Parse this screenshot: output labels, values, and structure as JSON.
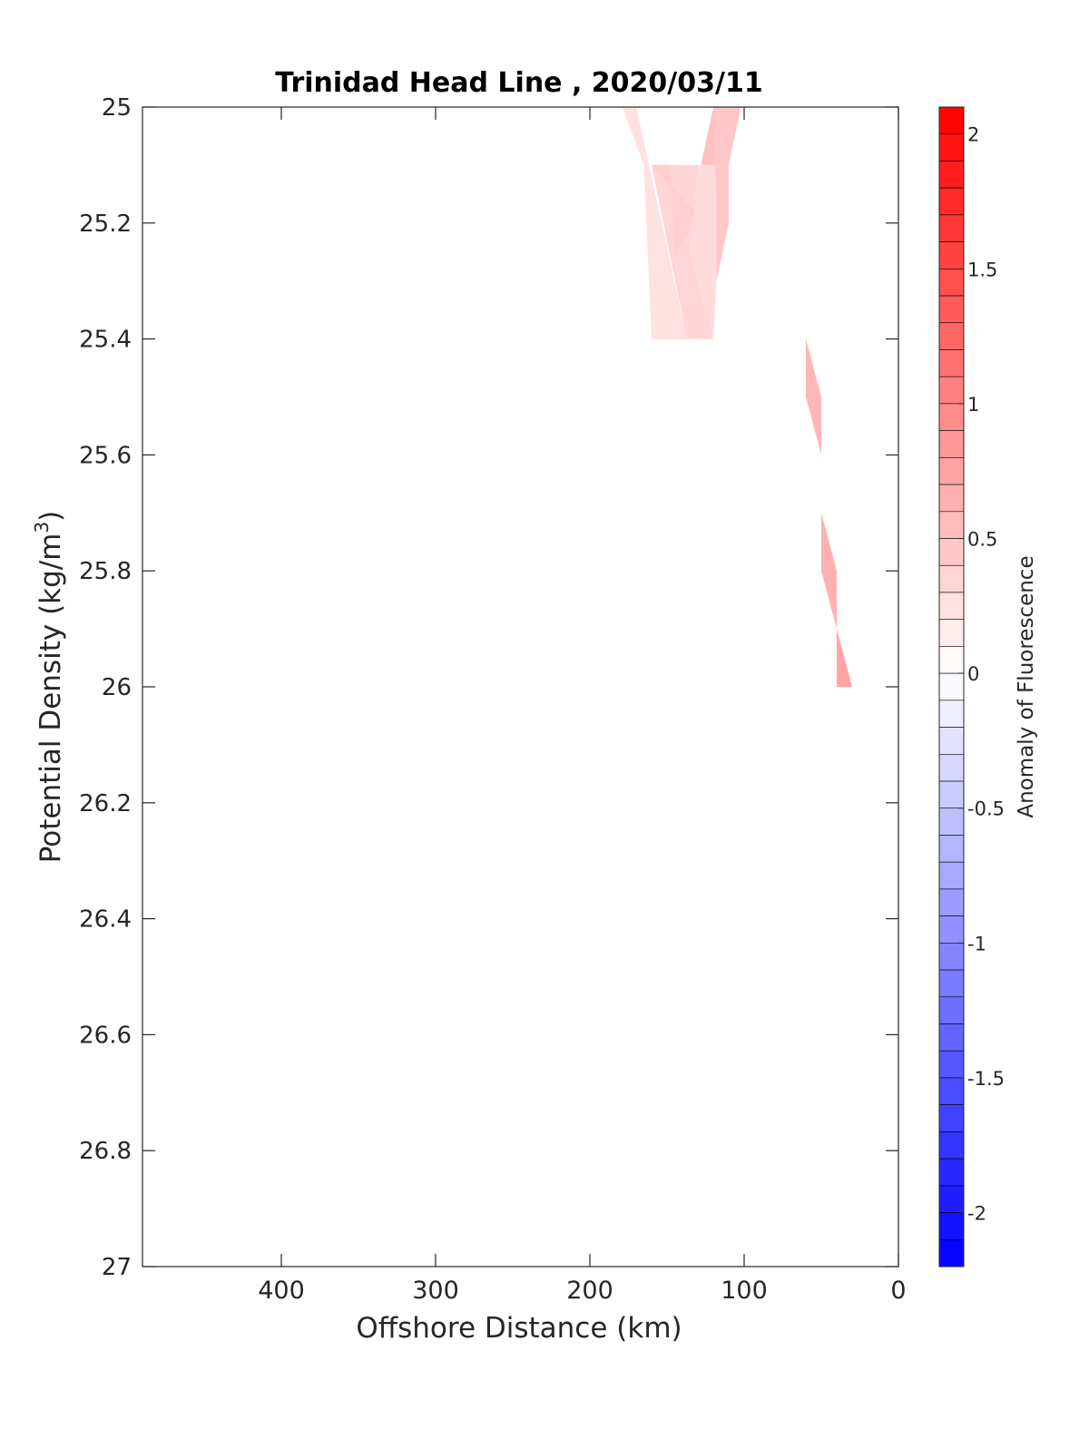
{
  "chart_data": {
    "type": "contour",
    "title": "Trinidad Head Line , 2020/03/11",
    "xlabel": "Offshore Distance (km)",
    "ylabel": "Potential Density (kg/m",
    "ylabel_superscript": "3",
    "ylabel_suffix": ")",
    "xlim": [
      490,
      0
    ],
    "ylim": [
      25,
      27
    ],
    "x_reversed": true,
    "y_reversed": true,
    "xticks": [
      400,
      300,
      200,
      100,
      0
    ],
    "yticks": [
      25,
      25.2,
      25.4,
      25.6,
      25.8,
      26,
      26.2,
      26.4,
      26.6,
      26.8,
      27
    ],
    "colorbar": {
      "label": "Anomaly of Fluorescence",
      "range": [
        -2.2,
        2.1
      ],
      "ticks": [
        2,
        1.5,
        1,
        0.5,
        0,
        -0.5,
        -1,
        -1.5,
        -2
      ],
      "step": 0.1,
      "neg_color": "#0000ff",
      "pos_color": "#ff0000",
      "zero_color": "#ffffff"
    },
    "regions": [
      {
        "value": 0.25,
        "polygon": [
          [
            179,
            25
          ],
          [
            170,
            25
          ],
          [
            137,
            25.4
          ],
          [
            160,
            25.4
          ],
          [
            165,
            25.1
          ]
        ]
      },
      {
        "value": 0.35,
        "polygon": [
          [
            160,
            25.1
          ],
          [
            130,
            25.1
          ],
          [
            135,
            25.25
          ],
          [
            120,
            25.4
          ],
          [
            137,
            25.4
          ]
        ]
      },
      {
        "value": 0.3,
        "polygon": [
          [
            130,
            25.1
          ],
          [
            110,
            25.1
          ],
          [
            110,
            25.2
          ],
          [
            118,
            25.3
          ],
          [
            120,
            25.4
          ],
          [
            135,
            25.25
          ]
        ]
      },
      {
        "value": 0.4,
        "polygon": [
          [
            160,
            25.1
          ],
          [
            148,
            25.1
          ],
          [
            145,
            25.25
          ],
          [
            137,
            25.22
          ],
          [
            132,
            25.18
          ]
        ]
      },
      {
        "value": 0.5,
        "polygon": [
          [
            110,
            25
          ],
          [
            120,
            25
          ],
          [
            128,
            25.1
          ],
          [
            110,
            25.1
          ]
        ]
      },
      {
        "value": 0.45,
        "polygon": [
          [
            120,
            25
          ],
          [
            102,
            25
          ],
          [
            110,
            25.1
          ],
          [
            110,
            25.2
          ],
          [
            118,
            25.3
          ],
          [
            118,
            25.15
          ]
        ]
      },
      {
        "value": 0.6,
        "polygon": [
          [
            60,
            25.4
          ],
          [
            50,
            25.5
          ],
          [
            50,
            25.6
          ],
          [
            60,
            25.5
          ]
        ]
      },
      {
        "value": 0.65,
        "polygon": [
          [
            50,
            25.7
          ],
          [
            40,
            25.8
          ],
          [
            40,
            25.9
          ],
          [
            50,
            25.8
          ]
        ]
      },
      {
        "value": 0.75,
        "polygon": [
          [
            40,
            25.9
          ],
          [
            30,
            26
          ],
          [
            40,
            26
          ]
        ]
      }
    ]
  }
}
